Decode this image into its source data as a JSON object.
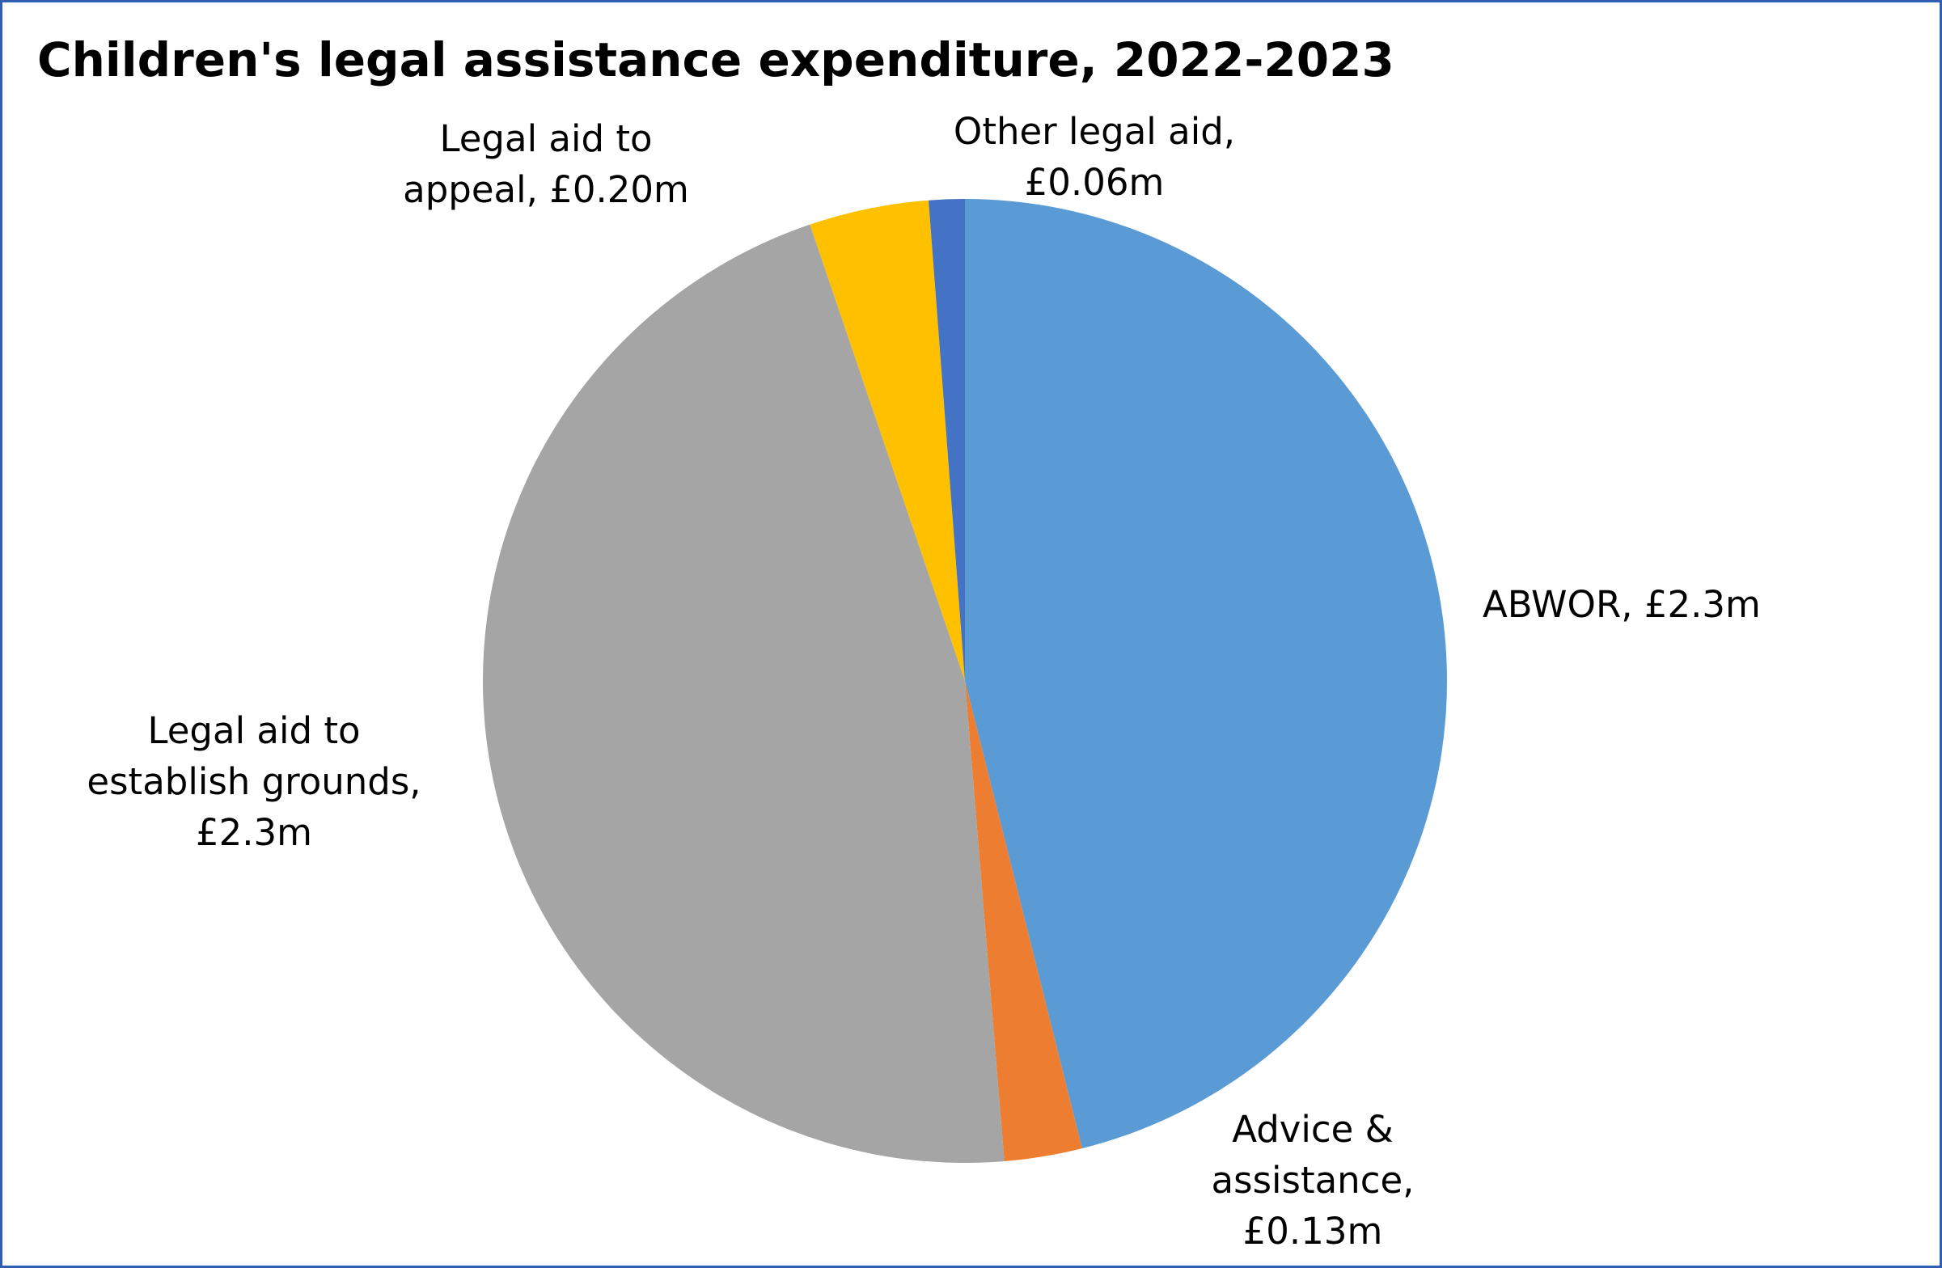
{
  "chart_data": {
    "type": "pie",
    "title": "Children's legal assistance expenditure, 2022-2023",
    "start_angle": "12 o'clock",
    "direction": "clockwise",
    "slices": [
      {
        "label": "ABWOR",
        "value": 2.3,
        "data_label": [
          "ABWOR, £2.3m"
        ],
        "color": "#5B9BD5"
      },
      {
        "label": "Advice & assistance",
        "value": 0.13,
        "data_label": [
          "Advice &",
          "assistance,",
          "£0.13m"
        ],
        "color": "#ED7D31"
      },
      {
        "label": "Legal aid to establish grounds",
        "value": 2.3,
        "data_label": [
          "Legal aid to",
          "establish grounds,",
          "£2.3m"
        ],
        "color": "#A5A5A5"
      },
      {
        "label": "Legal aid to appeal",
        "value": 0.2,
        "data_label": [
          "Legal aid to",
          "appeal, £0.20m"
        ],
        "color": "#FFC000"
      },
      {
        "label": "Other legal aid",
        "value": 0.06,
        "data_label": [
          "Other legal aid,",
          "£0.06m"
        ],
        "color": "#4472C4"
      }
    ],
    "unit": "£m",
    "border_color": "#2F5FB3"
  }
}
